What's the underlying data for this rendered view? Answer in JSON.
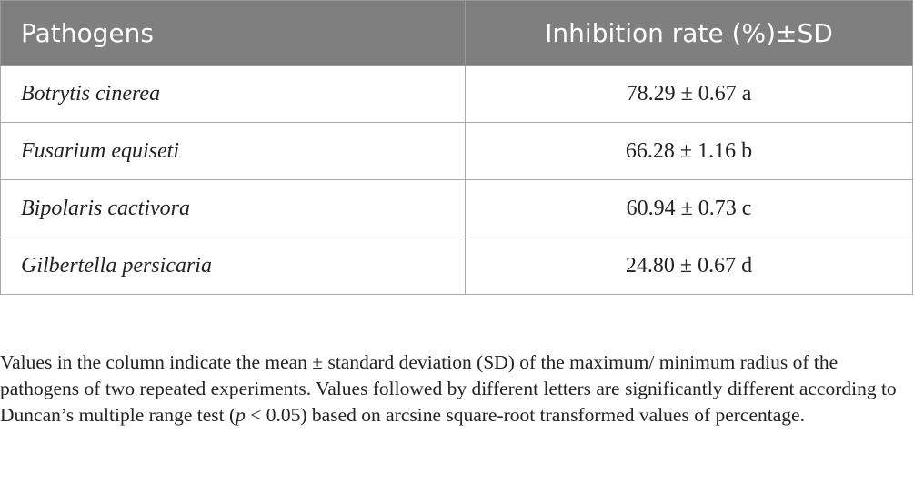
{
  "table": {
    "header": [
      "Pathogens",
      "Inhibition rate (%)±SD"
    ],
    "rows": [
      [
        "Botrytis cinerea",
        "78.29 ± 0.67 a"
      ],
      [
        "Fusarium equiseti",
        "66.28 ± 1.16 b"
      ],
      [
        "Bipolaris cactivora",
        "60.94 ± 0.73 c"
      ],
      [
        "Gilbertella persicaria",
        "24.80 ± 0.67 d"
      ]
    ]
  },
  "footnote": [
    "Values in the column indicate the mean ± standard deviation (SD) of the maximum/ minimum radius of the pathogens of two repeated experiments. Values followed by different letters are significantly different according to Duncan’s multiple range test (",
    "p",
    " < 0.05) based on arcsine square-root transformed values of percentage."
  ]
}
